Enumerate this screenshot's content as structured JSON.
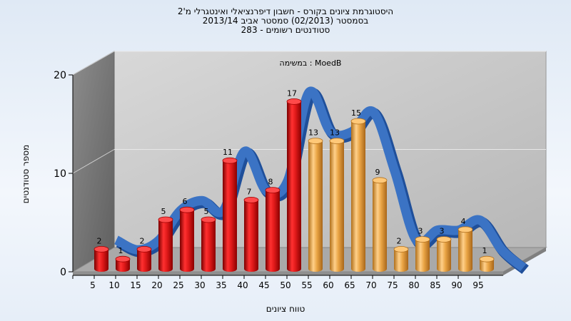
{
  "title_lines": [
    "היסטוגרמת ציונים בקורס - חשבון דיפרנציאלי ואינטגרלי מ'2",
    "בסמסטר  (02/2013)  סמסטר אביב 2013/14",
    "283 - סטודנטים רשומים"
  ],
  "subtitle": "במשימה : MoedB",
  "chart_data": {
    "type": "bar",
    "categories": [
      "5",
      "10",
      "15",
      "20",
      "25",
      "30",
      "35",
      "40",
      "45",
      "50",
      "55",
      "60",
      "65",
      "70",
      "75",
      "80",
      "85",
      "90",
      "95"
    ],
    "values": [
      2,
      1,
      2,
      5,
      6,
      5,
      11,
      7,
      8,
      17,
      13,
      13,
      15,
      9,
      2,
      3,
      3,
      4,
      1
    ],
    "data_labels": [
      "2",
      "1",
      "2",
      "5",
      "6",
      "5",
      "11",
      "7",
      "8",
      "17",
      "13",
      "13",
      "15",
      "9",
      "2",
      "3",
      "3",
      "4",
      "1"
    ],
    "bar_colors": [
      "red",
      "red",
      "red",
      "red",
      "red",
      "red",
      "red",
      "red",
      "red",
      "red",
      "orange",
      "orange",
      "orange",
      "orange",
      "orange",
      "orange",
      "orange",
      "orange",
      "orange"
    ],
    "colors": {
      "red": "#e01a1a",
      "orange": "#eaa545",
      "trend": "#3b73c4",
      "back_wall": "#c5c5c5",
      "side_wall": "#7a7a7a",
      "floor": "#a9a9a9"
    },
    "trend_line": true,
    "xlabel": "טווח ציונים",
    "ylabel": "מספר סטודנטים",
    "y_ticks": [
      "0",
      "10",
      "20"
    ],
    "ylim": [
      0,
      20
    ],
    "grid": true,
    "three_d": true
  }
}
